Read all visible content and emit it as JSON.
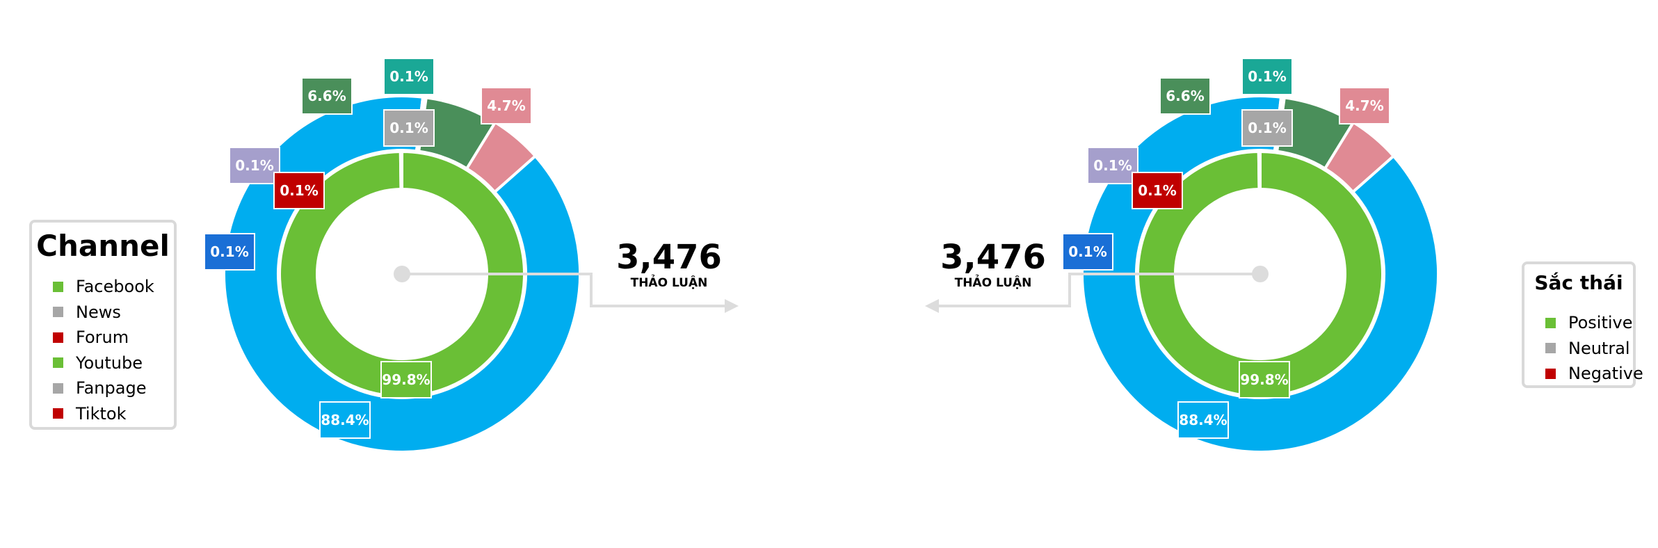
{
  "colors": {
    "facebook": "#00adef",
    "news": "#a6a6a6",
    "forum": "#c00000",
    "youtube": "#6abf36",
    "fanpage": "#a6a6a6",
    "tiktok": "#c00000",
    "positive": "#6abf36",
    "neutral": "#a6a6a6",
    "negative": "#c00000",
    "connector": "#dcdcdc"
  },
  "left_legend": {
    "title": "Channel",
    "items": [
      {
        "label": "Facebook",
        "color": "#6abf36"
      },
      {
        "label": "News",
        "color": "#a6a6a6"
      },
      {
        "label": "Forum",
        "color": "#c00000"
      },
      {
        "label": "Youtube",
        "color": "#6abf36"
      },
      {
        "label": "Fanpage",
        "color": "#a6a6a6"
      },
      {
        "label": "Tiktok",
        "color": "#c00000"
      }
    ]
  },
  "right_legend": {
    "title": "Sắc thái",
    "items": [
      {
        "label": "Positive",
        "color": "#6abf36"
      },
      {
        "label": "Neutral",
        "color": "#a6a6a6"
      },
      {
        "label": "Negative",
        "color": "#c00000"
      }
    ]
  },
  "left_total": {
    "value": "3,476",
    "caption": "THẢO LUẬN"
  },
  "right_total": {
    "value": "3,476",
    "caption": "THẢO LUẬN"
  },
  "chart_data": [
    {
      "type": "pie",
      "variant": "nested-donut",
      "outer_ring": [
        {
          "value": 88.4,
          "color": "#00adef",
          "label": "88.4%"
        },
        {
          "value": 0.1,
          "color": "#1a6fd6",
          "label": "0.1%"
        },
        {
          "value": 0.1,
          "color": "#a59fcc",
          "label": "0.1%"
        },
        {
          "value": 0.1,
          "color": "#1aa896",
          "label": "0.1%"
        },
        {
          "value": 6.6,
          "color": "#4a8f5a",
          "label": "6.6%"
        },
        {
          "value": 4.7,
          "color": "#e08a94",
          "label": "4.7%"
        }
      ],
      "inner_ring": [
        {
          "value": 99.8,
          "color": "#6abf36",
          "label": "99.8%"
        },
        {
          "value": 0.1,
          "color": "#c00000",
          "label": "0.1%"
        },
        {
          "value": 0.1,
          "color": "#a6a6a6",
          "label": "0.1%"
        }
      ],
      "total": "3,476"
    },
    {
      "type": "pie",
      "variant": "nested-donut",
      "outer_ring": [
        {
          "value": 88.4,
          "color": "#00adef",
          "label": "88.4%"
        },
        {
          "value": 0.1,
          "color": "#1a6fd6",
          "label": "0.1%"
        },
        {
          "value": 0.1,
          "color": "#a59fcc",
          "label": "0.1%"
        },
        {
          "value": 0.1,
          "color": "#1aa896",
          "label": "0.1%"
        },
        {
          "value": 6.6,
          "color": "#4a8f5a",
          "label": "6.6%"
        },
        {
          "value": 4.7,
          "color": "#e08a94",
          "label": "4.7%"
        }
      ],
      "inner_ring": [
        {
          "value": 99.8,
          "color": "#6abf36",
          "label": "99.8%"
        },
        {
          "value": 0.1,
          "color": "#c00000",
          "label": "0.1%"
        },
        {
          "value": 0.1,
          "color": "#a6a6a6",
          "label": "0.1%"
        }
      ],
      "total": "3,476"
    }
  ]
}
